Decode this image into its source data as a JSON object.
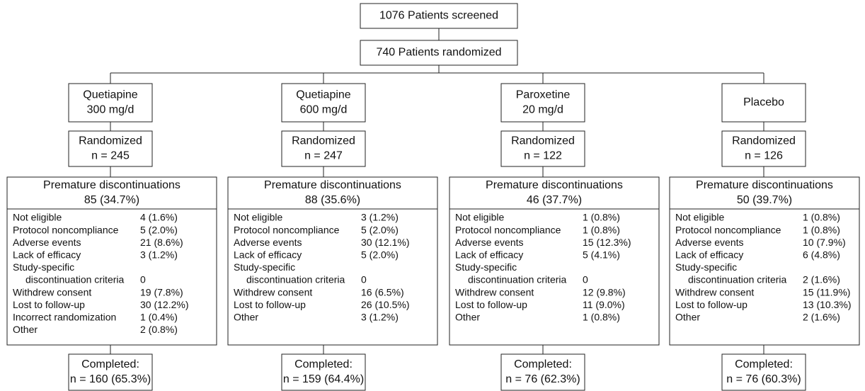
{
  "screened": "1076 Patients screened",
  "randomized": "740 Patients randomized",
  "arms": [
    {
      "name": [
        "Quetiapine",
        "300 mg/d"
      ],
      "randomized": [
        "Randomized",
        "n = 245"
      ],
      "discontinuations": {
        "title": "Premature discontinuations",
        "total": "85 (34.7%)",
        "reasons": [
          {
            "label": [
              "Not eligible"
            ],
            "value": "4 (1.6%)"
          },
          {
            "label": [
              "Protocol noncompliance"
            ],
            "value": "5 (2.0%)"
          },
          {
            "label": [
              "Adverse events"
            ],
            "value": "21 (8.6%)"
          },
          {
            "label": [
              "Lack of efficacy"
            ],
            "value": "3 (1.2%)"
          },
          {
            "label": [
              "Study-specific",
              "discontinuation criteria"
            ],
            "value": "0"
          },
          {
            "label": [
              "Withdrew consent"
            ],
            "value": "19 (7.8%)"
          },
          {
            "label": [
              "Lost to follow-up"
            ],
            "value": "30 (12.2%)"
          },
          {
            "label": [
              "Incorrect randomization"
            ],
            "value": "1 (0.4%)"
          },
          {
            "label": [
              "Other"
            ],
            "value": "2 (0.8%)"
          }
        ]
      },
      "completed": [
        "Completed:",
        "n = 160 (65.3%)"
      ]
    },
    {
      "name": [
        "Quetiapine",
        "600 mg/d"
      ],
      "randomized": [
        "Randomized",
        "n = 247"
      ],
      "discontinuations": {
        "title": "Premature discontinuations",
        "total": "88 (35.6%)",
        "reasons": [
          {
            "label": [
              "Not eligible"
            ],
            "value": "3 (1.2%)"
          },
          {
            "label": [
              "Protocol noncompliance"
            ],
            "value": "5 (2.0%)"
          },
          {
            "label": [
              "Adverse events"
            ],
            "value": "30 (12.1%)"
          },
          {
            "label": [
              "Lack of efficacy"
            ],
            "value": "5 (2.0%)"
          },
          {
            "label": [
              "Study-specific",
              "discontinuation criteria"
            ],
            "value": "0"
          },
          {
            "label": [
              "Withdrew consent"
            ],
            "value": "16 (6.5%)"
          },
          {
            "label": [
              "Lost to follow-up"
            ],
            "value": "26 (10.5%)"
          },
          {
            "label": [
              "Other"
            ],
            "value": "3 (1.2%)"
          }
        ]
      },
      "completed": [
        "Completed:",
        "n = 159 (64.4%)"
      ]
    },
    {
      "name": [
        "Paroxetine",
        "20 mg/d"
      ],
      "randomized": [
        "Randomized",
        "n = 122"
      ],
      "discontinuations": {
        "title": "Premature discontinuations",
        "total": "46 (37.7%)",
        "reasons": [
          {
            "label": [
              "Not eligible"
            ],
            "value": "1 (0.8%)"
          },
          {
            "label": [
              "Protocol noncompliance"
            ],
            "value": "1 (0.8%)"
          },
          {
            "label": [
              "Adverse events"
            ],
            "value": "15 (12.3%)"
          },
          {
            "label": [
              "Lack of efficacy"
            ],
            "value": "5 (4.1%)"
          },
          {
            "label": [
              "Study-specific",
              "discontinuation criteria"
            ],
            "value": "0"
          },
          {
            "label": [
              "Withdrew consent"
            ],
            "value": "12 (9.8%)"
          },
          {
            "label": [
              "Lost to follow-up"
            ],
            "value": "11 (9.0%)"
          },
          {
            "label": [
              "Other"
            ],
            "value": "1 (0.8%)"
          }
        ]
      },
      "completed": [
        "Completed:",
        "n = 76 (62.3%)"
      ]
    },
    {
      "name": [
        "Placebo"
      ],
      "randomized": [
        "Randomized",
        "n = 126"
      ],
      "discontinuations": {
        "title": "Premature discontinuations",
        "total": "50 (39.7%)",
        "reasons": [
          {
            "label": [
              "Not eligible"
            ],
            "value": "1 (0.8%)"
          },
          {
            "label": [
              "Protocol noncompliance"
            ],
            "value": "1 (0.8%)"
          },
          {
            "label": [
              "Adverse events"
            ],
            "value": "10 (7.9%)"
          },
          {
            "label": [
              "Lack of efficacy"
            ],
            "value": "6 (4.8%)"
          },
          {
            "label": [
              "Study-specific",
              "discontinuation criteria"
            ],
            "value": "2 (1.6%)"
          },
          {
            "label": [
              "Withdrew consent"
            ],
            "value": "15 (11.9%)"
          },
          {
            "label": [
              "Lost to follow-up"
            ],
            "value": "13 (10.3%)"
          },
          {
            "label": [
              "Other"
            ],
            "value": "2 (1.6%)"
          }
        ]
      },
      "completed": [
        "Completed:",
        "n = 76 (60.3%)"
      ]
    }
  ]
}
